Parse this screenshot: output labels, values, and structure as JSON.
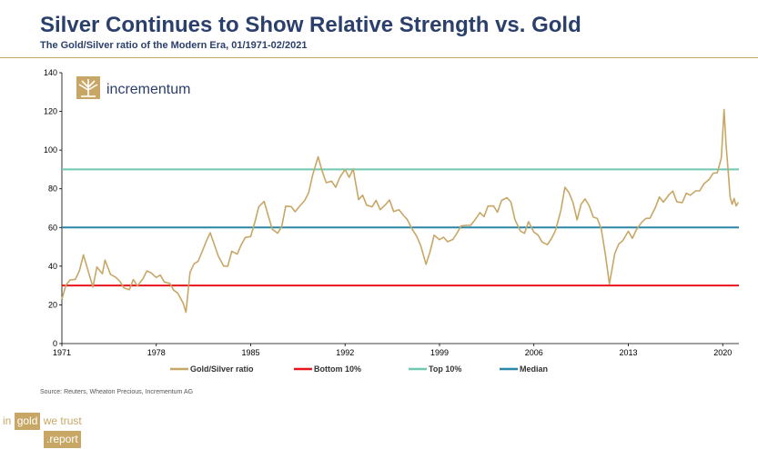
{
  "header": {
    "title": "Silver Continues to Show Relative Strength vs. Gold",
    "subtitle": "The Gold/Silver ratio of the Modern Era, 01/1971-02/2021"
  },
  "source": "Source: Reuters, Wheaton Precious, Incrementum AG",
  "brand": {
    "w1": "in",
    "w2": "gold",
    "w3": "we trust",
    "w4": ".report"
  },
  "logo": {
    "text": "incrementum",
    "icon": "tree-icon"
  },
  "colors": {
    "ratio": "#c8a766",
    "bottom": "#e8131b",
    "top": "#6fc7b4",
    "median": "#2a86a7",
    "title": "#2b3f6c"
  },
  "chart_data": {
    "type": "line",
    "title": "Silver Continues to Show Relative Strength vs. Gold",
    "xlabel": "",
    "ylabel": "",
    "xlim": [
      1971,
      2021.2
    ],
    "ylim": [
      0,
      140
    ],
    "yticks": [
      0,
      20,
      40,
      60,
      80,
      100,
      120,
      140
    ],
    "xticks": [
      "1971",
      "1978",
      "1985",
      "1992",
      "1999",
      "2006",
      "2013",
      "2020"
    ],
    "xtick_values": [
      1971,
      1978,
      1985,
      1992,
      1999,
      2006,
      2013,
      2020
    ],
    "legend": [
      "Gold/Silver ratio",
      "Bottom 10%",
      "Top 10%",
      "Median"
    ],
    "series": [
      {
        "name": "Gold/Silver ratio",
        "x": [
          1971.0,
          1971.3,
          1971.6,
          1972.0,
          1972.3,
          1972.6,
          1973.0,
          1973.3,
          1973.6,
          1974.0,
          1974.2,
          1974.6,
          1975.0,
          1975.3,
          1975.6,
          1976.0,
          1976.3,
          1976.6,
          1977.0,
          1977.3,
          1977.6,
          1978.0,
          1978.3,
          1978.6,
          1979.0,
          1979.3,
          1979.6,
          1980.0,
          1980.2,
          1980.5,
          1980.8,
          1981.1,
          1981.4,
          1981.7,
          1982.0,
          1982.3,
          1982.6,
          1983.0,
          1983.3,
          1983.6,
          1984.0,
          1984.3,
          1984.6,
          1985.0,
          1985.3,
          1985.6,
          1986.0,
          1986.3,
          1986.6,
          1987.0,
          1987.3,
          1987.6,
          1988.0,
          1988.3,
          1988.6,
          1989.0,
          1989.3,
          1989.6,
          1990.0,
          1990.3,
          1990.6,
          1991.0,
          1991.3,
          1991.6,
          1992.0,
          1992.3,
          1992.6,
          1993.0,
          1993.3,
          1993.6,
          1994.0,
          1994.3,
          1994.6,
          1995.0,
          1995.3,
          1995.6,
          1996.0,
          1996.3,
          1996.6,
          1997.0,
          1997.3,
          1997.6,
          1998.0,
          1998.3,
          1998.6,
          1999.0,
          1999.3,
          1999.6,
          2000.0,
          2000.3,
          2000.6,
          2001.0,
          2001.3,
          2001.6,
          2002.0,
          2002.3,
          2002.6,
          2003.0,
          2003.3,
          2003.6,
          2004.0,
          2004.3,
          2004.6,
          2005.0,
          2005.3,
          2005.6,
          2006.0,
          2006.3,
          2006.6,
          2007.0,
          2007.3,
          2007.6,
          2008.0,
          2008.3,
          2008.6,
          2008.9,
          2009.2,
          2009.5,
          2009.8,
          2010.1,
          2010.4,
          2010.7,
          2011.0,
          2011.3,
          2011.6,
          2012.0,
          2012.3,
          2012.6,
          2013.0,
          2013.3,
          2013.6,
          2014.0,
          2014.3,
          2014.6,
          2015.0,
          2015.3,
          2015.6,
          2016.0,
          2016.3,
          2016.6,
          2017.0,
          2017.3,
          2017.6,
          2018.0,
          2018.3,
          2018.6,
          2019.0,
          2019.3,
          2019.6,
          2019.9,
          2020.1,
          2020.25,
          2020.4,
          2020.55,
          2020.7,
          2020.85,
          2021.0,
          2021.15
        ],
        "values": [
          23,
          29,
          34,
          33,
          38,
          46,
          36,
          30,
          40,
          36,
          42,
          35,
          35,
          31,
          28,
          28,
          32,
          30,
          33,
          38,
          36,
          34,
          35,
          32,
          32,
          28,
          26,
          22,
          17,
          37,
          40,
          42,
          48,
          53,
          58,
          51,
          44,
          39,
          40,
          47,
          46,
          50,
          55,
          56,
          62,
          70,
          74,
          66,
          60,
          58,
          61,
          72,
          70,
          68,
          71,
          73,
          78,
          88,
          97,
          90,
          84,
          85,
          80,
          87,
          91,
          87,
          90,
          75,
          77,
          72,
          71,
          74,
          70,
          73,
          75,
          68,
          70,
          66,
          65,
          60,
          55,
          51,
          42,
          48,
          57,
          54,
          55,
          53,
          54,
          56,
          60,
          62,
          61,
          63,
          67,
          65,
          70,
          72,
          69,
          74,
          76,
          72,
          65,
          59,
          57,
          62,
          58,
          56,
          52,
          50,
          55,
          58,
          70,
          82,
          78,
          73,
          64,
          71,
          75,
          70,
          66,
          64,
          58,
          47,
          32,
          46,
          52,
          54,
          57,
          55,
          59,
          62,
          64,
          66,
          70,
          75,
          74,
          76,
          78,
          74,
          73,
          77,
          76,
          78,
          80,
          82,
          84,
          87,
          88,
          96,
          120,
          104,
          91,
          75,
          72,
          74,
          70,
          73
        ]
      },
      {
        "name": "Bottom 10%",
        "values": [
          30
        ]
      },
      {
        "name": "Top 10%",
        "values": [
          90
        ]
      },
      {
        "name": "Median",
        "values": [
          60
        ]
      }
    ]
  }
}
